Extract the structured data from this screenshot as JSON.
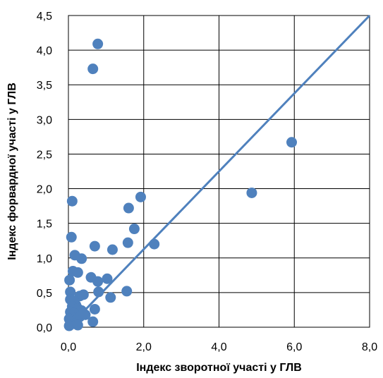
{
  "chart_data": {
    "type": "scatter",
    "xlabel": "Індекс зворотної участі у ГЛВ",
    "ylabel": "Індекс форвардної участі у ГЛВ",
    "xlim": [
      0,
      8
    ],
    "ylim": [
      0,
      4.5
    ],
    "x_ticks": [
      0,
      2,
      4,
      6,
      8
    ],
    "y_ticks": [
      0,
      0.5,
      1,
      1.5,
      2,
      2.5,
      3,
      3.5,
      4,
      4.5
    ],
    "x_tick_labels": [
      "0,0",
      "2,0",
      "4,0",
      "6,0",
      "8,0"
    ],
    "y_tick_labels": [
      "0,0",
      "0,5",
      "1,0",
      "1,5",
      "2,0",
      "2,5",
      "3,0",
      "3,5",
      "4,0",
      "4,5"
    ],
    "grid": true,
    "series": [
      {
        "color": "#4f81bd",
        "points": [
          [
            0.78,
            4.09
          ],
          [
            0.65,
            3.73
          ],
          [
            5.93,
            2.67
          ],
          [
            4.87,
            1.94
          ],
          [
            1.92,
            1.88
          ],
          [
            0.1,
            1.82
          ],
          [
            1.6,
            1.72
          ],
          [
            1.75,
            1.42
          ],
          [
            0.08,
            1.3
          ],
          [
            1.58,
            1.22
          ],
          [
            2.28,
            1.2
          ],
          [
            0.7,
            1.17
          ],
          [
            1.17,
            1.12
          ],
          [
            0.17,
            1.04
          ],
          [
            0.35,
            0.99
          ],
          [
            0.12,
            0.81
          ],
          [
            0.25,
            0.79
          ],
          [
            0.03,
            0.68
          ],
          [
            0.6,
            0.72
          ],
          [
            0.78,
            0.66
          ],
          [
            1.03,
            0.7
          ],
          [
            0.05,
            0.51
          ],
          [
            0.8,
            0.51
          ],
          [
            1.55,
            0.52
          ],
          [
            0.3,
            0.45
          ],
          [
            0.4,
            0.47
          ],
          [
            1.12,
            0.43
          ],
          [
            0.05,
            0.4
          ],
          [
            0.15,
            0.38
          ],
          [
            0.2,
            0.32
          ],
          [
            0.1,
            0.3
          ],
          [
            0.25,
            0.27
          ],
          [
            0.35,
            0.24
          ],
          [
            0.05,
            0.22
          ],
          [
            0.15,
            0.2
          ],
          [
            0.7,
            0.26
          ],
          [
            0.45,
            0.18
          ],
          [
            0.3,
            0.15
          ],
          [
            0.1,
            0.14
          ],
          [
            0.02,
            0.12
          ],
          [
            0.2,
            0.1
          ],
          [
            0.08,
            0.08
          ],
          [
            0.65,
            0.08
          ],
          [
            0.15,
            0.05
          ],
          [
            0.05,
            0.04
          ],
          [
            0.02,
            0.02
          ],
          [
            0.25,
            0.03
          ],
          [
            0.4,
            0.2
          ]
        ]
      }
    ],
    "trendline": {
      "color": "#4f81bd",
      "points": [
        [
          0,
          0
        ],
        [
          8,
          4.5
        ]
      ]
    }
  }
}
